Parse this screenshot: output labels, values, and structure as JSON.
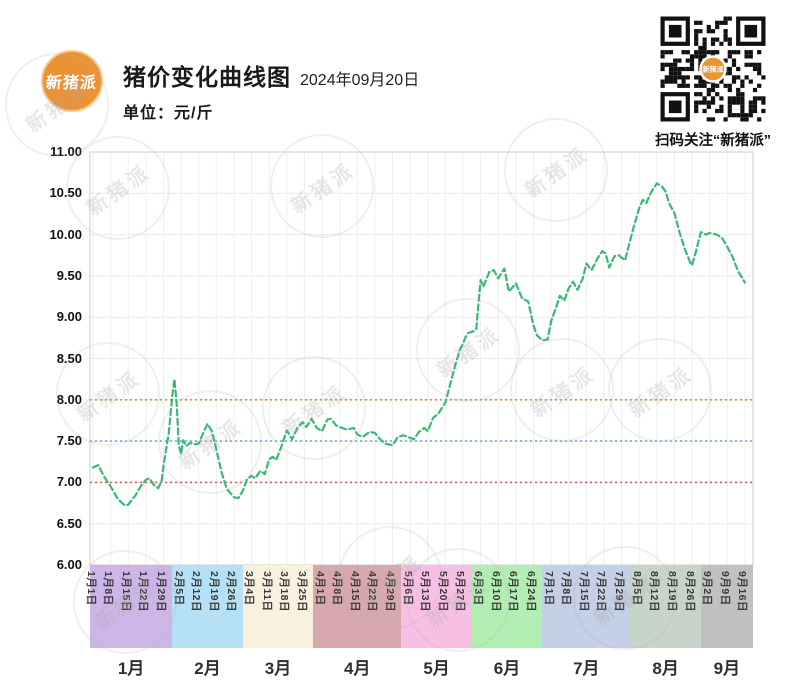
{
  "header": {
    "logo_text": "新猪派",
    "title": "猪价变化曲线图",
    "date": "2024年09月20日",
    "unit_label": "单位：元/斤",
    "qr_caption": "扫码关注“新猪派”",
    "brand_color": "#ea9235"
  },
  "watermark_text": "新猪派",
  "chart_data": {
    "type": "line",
    "title": "猪价变化曲线图 2024年09月20日",
    "xlabel": "",
    "ylabel": "元/斤",
    "ylim": [
      6.0,
      11.0
    ],
    "ytick_step": 0.5,
    "ytick_labels": [
      "6.00",
      "6.50",
      "7.00",
      "7.50",
      "8.00",
      "8.50",
      "9.00",
      "9.50",
      "10.00",
      "10.50",
      "11.00"
    ],
    "grid": true,
    "line_color": "#3bb877",
    "line_style": "dashed",
    "categories": [
      "1月1日",
      "1月8日",
      "1月15日",
      "1月22日",
      "1月29日",
      "2月5日",
      "2月12日",
      "2月19日",
      "2月26日",
      "3月4日",
      "3月11日",
      "3月18日",
      "3月25日",
      "4月1日",
      "4月8日",
      "4月15日",
      "4月22日",
      "4月29日",
      "5月6日",
      "5月13日",
      "5月20日",
      "5月27日",
      "6月3日",
      "6月10日",
      "6月17日",
      "6月24日",
      "7月1日",
      "7月8日",
      "7月15日",
      "7月22日",
      "7月29日",
      "8月5日",
      "8月12日",
      "8月19日",
      "8月26日",
      "9月2日",
      "9月9日",
      "9月16日"
    ],
    "values": [
      7.18,
      6.95,
      6.73,
      7.03,
      7.2,
      7.34,
      7.47,
      7.4,
      6.82,
      7.08,
      7.28,
      7.63,
      7.73,
      7.62,
      7.67,
      7.58,
      7.6,
      7.45,
      7.54,
      7.62,
      7.97,
      8.68,
      9.45,
      9.47,
      9.41,
      8.9,
      8.95,
      9.35,
      9.65,
      9.77,
      9.72,
      10.32,
      10.62,
      10.26,
      9.63,
      10.02,
      9.85,
      9.42
    ],
    "dense_points": [
      [
        0,
        7.18
      ],
      [
        0.3,
        7.21
      ],
      [
        0.6,
        7.08
      ],
      [
        1,
        6.95
      ],
      [
        1.4,
        6.8
      ],
      [
        1.8,
        6.72
      ],
      [
        2,
        6.73
      ],
      [
        2.4,
        6.84
      ],
      [
        2.7,
        6.95
      ],
      [
        3,
        7.03
      ],
      [
        3.2,
        7.05
      ],
      [
        3.45,
        6.97
      ],
      [
        3.7,
        6.93
      ],
      [
        3.9,
        7.02
      ],
      [
        4,
        7.2
      ],
      [
        4.3,
        7.6
      ],
      [
        4.5,
        8.05
      ],
      [
        4.62,
        8.25
      ],
      [
        4.75,
        7.95
      ],
      [
        4.87,
        7.45
      ],
      [
        5,
        7.34
      ],
      [
        5.12,
        7.51
      ],
      [
        5.3,
        7.44
      ],
      [
        5.5,
        7.48
      ],
      [
        5.75,
        7.46
      ],
      [
        6,
        7.47
      ],
      [
        6.3,
        7.62
      ],
      [
        6.5,
        7.71
      ],
      [
        6.75,
        7.62
      ],
      [
        7,
        7.4
      ],
      [
        7.3,
        7.12
      ],
      [
        7.6,
        6.92
      ],
      [
        8,
        6.82
      ],
      [
        8.25,
        6.81
      ],
      [
        8.5,
        6.9
      ],
      [
        8.75,
        7.04
      ],
      [
        9,
        7.08
      ],
      [
        9.2,
        7.05
      ],
      [
        9.5,
        7.14
      ],
      [
        9.75,
        7.1
      ],
      [
        10,
        7.28
      ],
      [
        10.2,
        7.31
      ],
      [
        10.4,
        7.27
      ],
      [
        10.7,
        7.44
      ],
      [
        11,
        7.63
      ],
      [
        11.3,
        7.52
      ],
      [
        11.6,
        7.66
      ],
      [
        11.9,
        7.73
      ],
      [
        12.1,
        7.67
      ],
      [
        12.4,
        7.77
      ],
      [
        12.7,
        7.66
      ],
      [
        13,
        7.62
      ],
      [
        13.3,
        7.76
      ],
      [
        13.5,
        7.77
      ],
      [
        13.8,
        7.69
      ],
      [
        14,
        7.67
      ],
      [
        14.4,
        7.64
      ],
      [
        14.8,
        7.66
      ],
      [
        15,
        7.58
      ],
      [
        15.3,
        7.55
      ],
      [
        15.7,
        7.61
      ],
      [
        16,
        7.6
      ],
      [
        16.3,
        7.52
      ],
      [
        16.6,
        7.47
      ],
      [
        17,
        7.45
      ],
      [
        17.3,
        7.55
      ],
      [
        17.6,
        7.57
      ],
      [
        18,
        7.54
      ],
      [
        18.2,
        7.52
      ],
      [
        18.5,
        7.61
      ],
      [
        18.8,
        7.66
      ],
      [
        19,
        7.62
      ],
      [
        19.3,
        7.78
      ],
      [
        19.6,
        7.83
      ],
      [
        20,
        7.97
      ],
      [
        20.3,
        8.21
      ],
      [
        20.6,
        8.45
      ],
      [
        20.85,
        8.62
      ],
      [
        21,
        8.68
      ],
      [
        21.15,
        8.76
      ],
      [
        21.3,
        8.81
      ],
      [
        21.6,
        8.83
      ],
      [
        21.75,
        8.85
      ],
      [
        21.85,
        9.1
      ],
      [
        22,
        9.45
      ],
      [
        22.15,
        9.37
      ],
      [
        22.5,
        9.55
      ],
      [
        22.75,
        9.57
      ],
      [
        23,
        9.47
      ],
      [
        23.35,
        9.59
      ],
      [
        23.6,
        9.31
      ],
      [
        24,
        9.41
      ],
      [
        24.35,
        9.23
      ],
      [
        24.7,
        9.19
      ],
      [
        25,
        8.9
      ],
      [
        25.2,
        8.78
      ],
      [
        25.5,
        8.72
      ],
      [
        25.8,
        8.73
      ],
      [
        26,
        8.95
      ],
      [
        26.3,
        9.13
      ],
      [
        26.5,
        9.26
      ],
      [
        26.75,
        9.2
      ],
      [
        27,
        9.35
      ],
      [
        27.25,
        9.43
      ],
      [
        27.5,
        9.33
      ],
      [
        27.8,
        9.47
      ],
      [
        28,
        9.65
      ],
      [
        28.3,
        9.57
      ],
      [
        28.6,
        9.7
      ],
      [
        28.9,
        9.8
      ],
      [
        29.1,
        9.77
      ],
      [
        29.3,
        9.6
      ],
      [
        29.6,
        9.74
      ],
      [
        29.85,
        9.75
      ],
      [
        30,
        9.72
      ],
      [
        30.2,
        9.69
      ],
      [
        30.45,
        9.9
      ],
      [
        30.7,
        10.1
      ],
      [
        31,
        10.32
      ],
      [
        31.2,
        10.42
      ],
      [
        31.4,
        10.38
      ],
      [
        31.7,
        10.52
      ],
      [
        32,
        10.62
      ],
      [
        32.3,
        10.58
      ],
      [
        32.5,
        10.52
      ],
      [
        32.7,
        10.38
      ],
      [
        33,
        10.26
      ],
      [
        33.3,
        10.02
      ],
      [
        33.6,
        9.82
      ],
      [
        33.9,
        9.66
      ],
      [
        34,
        9.63
      ],
      [
        34.2,
        9.78
      ],
      [
        34.5,
        10.03
      ],
      [
        34.8,
        10
      ],
      [
        35,
        10.02
      ],
      [
        35.4,
        10
      ],
      [
        35.7,
        9.96
      ],
      [
        36,
        9.85
      ],
      [
        36.3,
        9.73
      ],
      [
        36.6,
        9.56
      ],
      [
        37,
        9.42
      ]
    ],
    "reference_lines": [
      {
        "value": 8.0,
        "color": "#cd8f47",
        "style": "dotted"
      },
      {
        "value": 7.5,
        "color": "#6fa8dc",
        "style": "dotted"
      },
      {
        "value": 7.0,
        "color": "#e06060",
        "style": "dotted"
      }
    ],
    "months": [
      {
        "label": "1月",
        "color": "#cdb5e8",
        "tick_count": 5
      },
      {
        "label": "2月",
        "color": "#b5e0f5",
        "tick_count": 4
      },
      {
        "label": "3月",
        "color": "#f7f1de",
        "tick_count": 4
      },
      {
        "label": "4月",
        "color": "#d8a9ac",
        "tick_count": 5
      },
      {
        "label": "5月",
        "color": "#f8bfe4",
        "tick_count": 4
      },
      {
        "label": "6月",
        "color": "#b2eeb2",
        "tick_count": 4
      },
      {
        "label": "7月",
        "color": "#c4cfe8",
        "tick_count": 5
      },
      {
        "label": "8月",
        "color": "#c7d4ca",
        "tick_count": 4
      },
      {
        "label": "9月",
        "color": "#c1c1c1",
        "tick_count": 3
      }
    ],
    "legend": []
  }
}
